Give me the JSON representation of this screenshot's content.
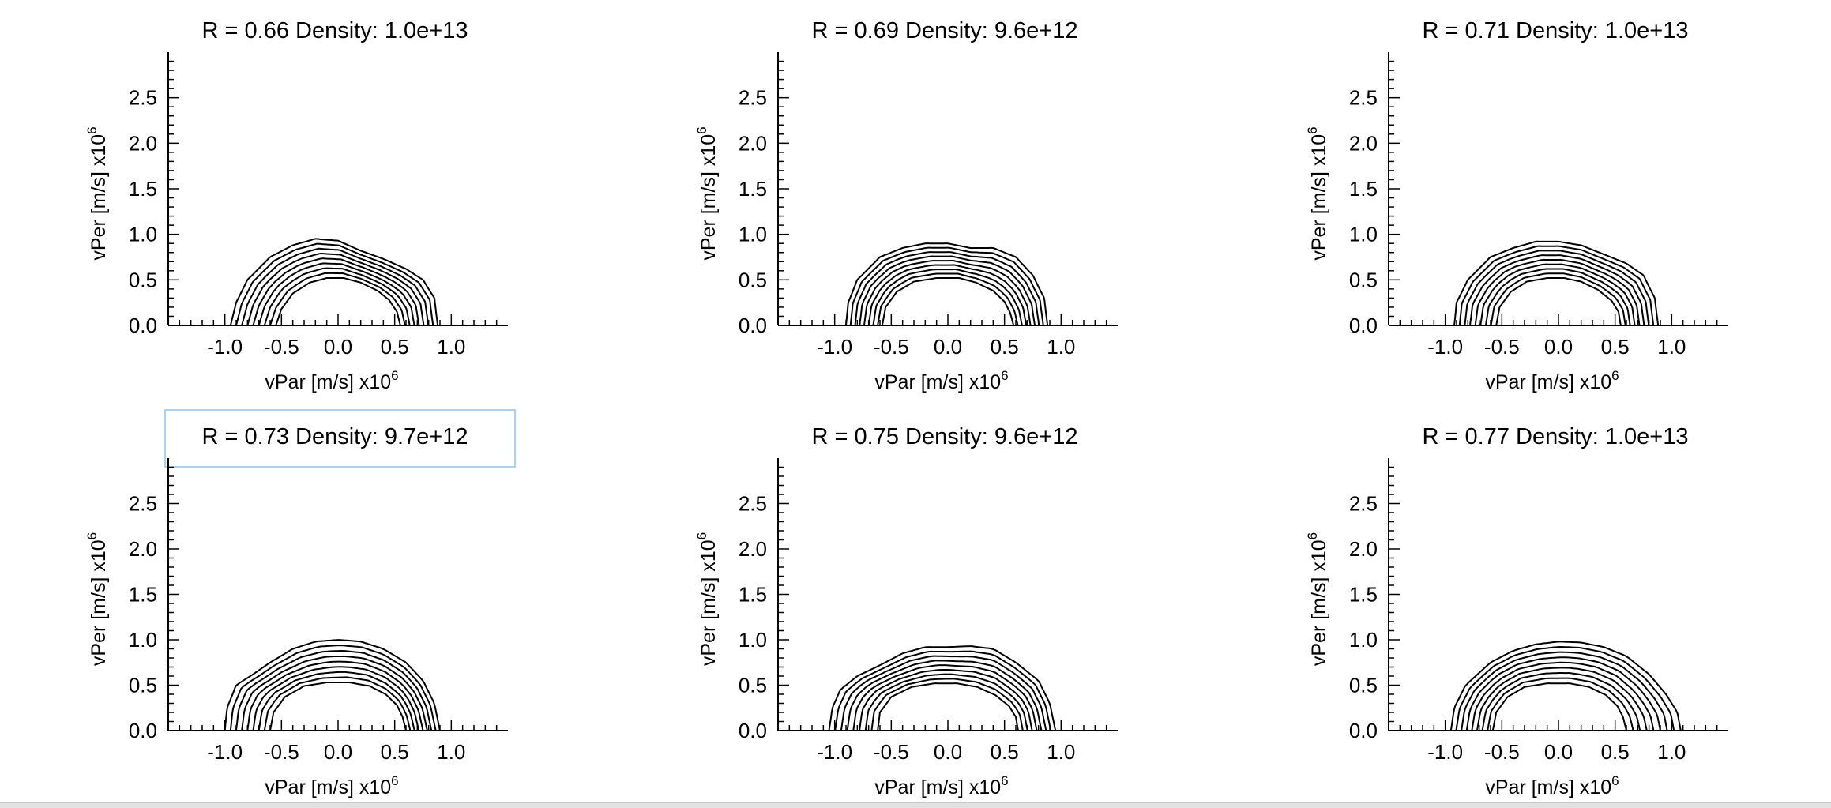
{
  "colors": {
    "background": "#ffffff",
    "ink": "#000000",
    "highlight_box": "#8fc3e8"
  },
  "axes_common": {
    "xlabel": "vPar [m/s] x10",
    "xlabel_exp": "6",
    "ylabel": "vPer [m/s] x10",
    "ylabel_exp": "6",
    "xlim": [
      -1.5,
      1.5
    ],
    "ylim": [
      0,
      3.0
    ],
    "xticks": [
      -1.0,
      -0.5,
      0.0,
      0.5,
      1.0
    ],
    "xtick_labels": [
      "-1.0",
      "-0.5",
      "0.0",
      "0.5",
      "1.0"
    ],
    "yticks": [
      0.0,
      0.5,
      1.0,
      1.5,
      2.0,
      2.5
    ],
    "ytick_labels": [
      "0.0",
      "0.5",
      "1.0",
      "1.5",
      "2.0",
      "2.5"
    ],
    "grid": false
  },
  "chart_data": [
    {
      "type": "line",
      "title": "R = 0.66 Density: 1.0e+13",
      "contour_levels": 9,
      "series": [
        {
          "x": [
            -0.95,
            -0.9,
            -0.8,
            -0.6,
            -0.4,
            -0.2,
            0.0,
            0.2,
            0.4,
            0.6,
            0.75,
            0.85,
            0.88
          ],
          "y": [
            0.0,
            0.25,
            0.5,
            0.75,
            0.88,
            0.95,
            0.93,
            0.82,
            0.73,
            0.62,
            0.5,
            0.3,
            0.0
          ]
        },
        {
          "x": [
            -0.55,
            -0.5,
            -0.4,
            -0.25,
            -0.1,
            0.05,
            0.2,
            0.35,
            0.45,
            0.52,
            0.55
          ],
          "y": [
            0.0,
            0.18,
            0.35,
            0.47,
            0.52,
            0.52,
            0.47,
            0.38,
            0.28,
            0.15,
            0.0
          ]
        }
      ]
    },
    {
      "type": "line",
      "title": "R = 0.69 Density: 9.6e+12",
      "contour_levels": 9,
      "series": [
        {
          "x": [
            -0.9,
            -0.88,
            -0.8,
            -0.6,
            -0.4,
            -0.2,
            0.0,
            0.2,
            0.4,
            0.6,
            0.75,
            0.85,
            0.88
          ],
          "y": [
            0.0,
            0.25,
            0.5,
            0.75,
            0.85,
            0.9,
            0.9,
            0.85,
            0.85,
            0.75,
            0.55,
            0.3,
            0.0
          ]
        },
        {
          "x": [
            -0.58,
            -0.55,
            -0.45,
            -0.3,
            -0.1,
            0.1,
            0.25,
            0.4,
            0.5,
            0.55,
            0.58
          ],
          "y": [
            0.0,
            0.2,
            0.37,
            0.48,
            0.52,
            0.52,
            0.47,
            0.38,
            0.26,
            0.14,
            0.0
          ]
        }
      ]
    },
    {
      "type": "line",
      "title": "R = 0.71 Density: 1.0e+13",
      "contour_levels": 9,
      "series": [
        {
          "x": [
            -0.92,
            -0.9,
            -0.8,
            -0.6,
            -0.4,
            -0.2,
            0.0,
            0.2,
            0.4,
            0.6,
            0.75,
            0.85,
            0.88
          ],
          "y": [
            0.0,
            0.25,
            0.5,
            0.75,
            0.85,
            0.92,
            0.92,
            0.88,
            0.78,
            0.68,
            0.55,
            0.3,
            0.0
          ]
        },
        {
          "x": [
            -0.55,
            -0.52,
            -0.42,
            -0.28,
            -0.1,
            0.05,
            0.2,
            0.35,
            0.47,
            0.53,
            0.55
          ],
          "y": [
            0.0,
            0.2,
            0.37,
            0.48,
            0.52,
            0.52,
            0.48,
            0.39,
            0.27,
            0.15,
            0.0
          ]
        }
      ]
    },
    {
      "type": "line",
      "title": "R = 0.73 Density: 9.7e+12",
      "contour_levels": 9,
      "series": [
        {
          "x": [
            -1.0,
            -0.98,
            -0.9,
            -0.75,
            -0.6,
            -0.4,
            -0.2,
            0.0,
            0.2,
            0.4,
            0.6,
            0.75,
            0.85,
            0.9
          ],
          "y": [
            0.0,
            0.25,
            0.5,
            0.62,
            0.75,
            0.9,
            0.98,
            1.0,
            0.98,
            0.9,
            0.75,
            0.55,
            0.3,
            0.0
          ]
        },
        {
          "x": [
            -0.6,
            -0.57,
            -0.47,
            -0.3,
            -0.1,
            0.1,
            0.28,
            0.42,
            0.52,
            0.57,
            0.6
          ],
          "y": [
            0.0,
            0.2,
            0.37,
            0.49,
            0.53,
            0.53,
            0.49,
            0.4,
            0.28,
            0.15,
            0.0
          ]
        }
      ]
    },
    {
      "type": "line",
      "title": "R = 0.75 Density: 9.6e+12",
      "contour_levels": 9,
      "series": [
        {
          "x": [
            -1.05,
            -1.02,
            -0.95,
            -0.8,
            -0.6,
            -0.4,
            -0.2,
            0.0,
            0.2,
            0.4,
            0.6,
            0.8,
            0.9,
            0.95
          ],
          "y": [
            0.0,
            0.25,
            0.45,
            0.6,
            0.72,
            0.85,
            0.92,
            0.92,
            0.93,
            0.9,
            0.75,
            0.55,
            0.3,
            0.0
          ]
        },
        {
          "x": [
            -0.62,
            -0.6,
            -0.5,
            -0.32,
            -0.12,
            0.08,
            0.26,
            0.42,
            0.54,
            0.6,
            0.62
          ],
          "y": [
            0.0,
            0.2,
            0.37,
            0.48,
            0.52,
            0.52,
            0.48,
            0.39,
            0.27,
            0.15,
            0.0
          ]
        }
      ]
    },
    {
      "type": "line",
      "title": "R = 0.77 Density: 1.0e+13",
      "contour_levels": 9,
      "series": [
        {
          "x": [
            -0.95,
            -0.92,
            -0.82,
            -0.6,
            -0.4,
            -0.2,
            0.0,
            0.2,
            0.4,
            0.6,
            0.8,
            0.95,
            1.05,
            1.08
          ],
          "y": [
            0.0,
            0.25,
            0.5,
            0.75,
            0.88,
            0.95,
            0.98,
            0.97,
            0.92,
            0.82,
            0.62,
            0.4,
            0.2,
            0.0
          ]
        },
        {
          "x": [
            -0.58,
            -0.55,
            -0.45,
            -0.3,
            -0.1,
            0.1,
            0.27,
            0.42,
            0.52,
            0.57,
            0.6
          ],
          "y": [
            0.0,
            0.2,
            0.37,
            0.48,
            0.52,
            0.52,
            0.48,
            0.39,
            0.27,
            0.15,
            0.0
          ]
        }
      ]
    }
  ]
}
